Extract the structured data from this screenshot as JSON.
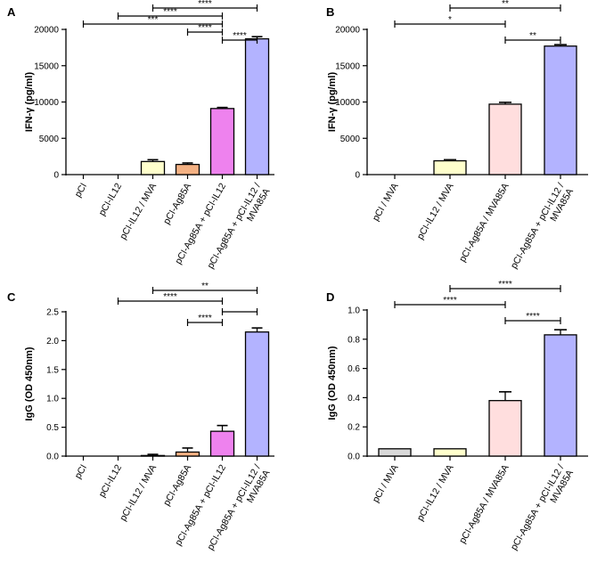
{
  "chart_data": [
    {
      "panel": "A",
      "type": "bar",
      "ylabel": "IFN-γ (pg/ml)",
      "ylim": [
        0,
        20000
      ],
      "yticks": [
        0,
        5000,
        10000,
        15000,
        20000
      ],
      "tick_labels": [
        "0",
        "5000",
        "10000",
        "15000",
        "20000"
      ],
      "categories": [
        [
          "pCI"
        ],
        [
          "pCI-IL12"
        ],
        [
          "pCI-IL12 / MVA"
        ],
        [
          "pCI-Ag85A"
        ],
        [
          "pCI-Ag85A + pCI-IL12"
        ],
        [
          "pCI-Ag85A + pCI-IL12 /",
          "MVA85A"
        ]
      ],
      "values": [
        0,
        0,
        1800,
        1400,
        9100,
        18700
      ],
      "errors": [
        0,
        0,
        250,
        200,
        150,
        300
      ],
      "colors": [
        "#ffffff",
        "#ffffff",
        "#ffffcc",
        "#f4b183",
        "#ee82ee",
        "#b3b3ff"
      ],
      "significance": [
        {
          "from": 2,
          "to": 5,
          "label": "****"
        },
        {
          "from": 1,
          "to": 4,
          "label": "****"
        },
        {
          "from": 0,
          "to": 4,
          "label": "***"
        },
        {
          "from": 3,
          "to": 4,
          "label": "****"
        },
        {
          "from": 4,
          "to": 5,
          "label": "****"
        }
      ]
    },
    {
      "panel": "B",
      "type": "bar",
      "ylabel": "IFN-γ (pg/ml)",
      "ylim": [
        0,
        20000
      ],
      "yticks": [
        0,
        5000,
        10000,
        15000,
        20000
      ],
      "tick_labels": [
        "0",
        "5000",
        "10000",
        "15000",
        "20000"
      ],
      "categories": [
        [
          "pCI / MVA"
        ],
        [
          "pCI-IL12 / MVA"
        ],
        [
          "pCI-Ag85A / MVA85A"
        ],
        [
          "pCI-Ag85A + pCI-IL12 /",
          "MVA85A"
        ]
      ],
      "values": [
        0,
        1900,
        9700,
        17700
      ],
      "errors": [
        0,
        150,
        250,
        200
      ],
      "colors": [
        "#ffffff",
        "#ffffcc",
        "#ffdede",
        "#b3b3ff"
      ],
      "significance": [
        {
          "from": 1,
          "to": 3,
          "label": "**"
        },
        {
          "from": 0,
          "to": 2,
          "label": "*"
        },
        {
          "from": 2,
          "to": 3,
          "label": "**"
        }
      ]
    },
    {
      "panel": "C",
      "type": "bar",
      "ylabel": "IgG (OD 450nm)",
      "ylim": [
        0,
        2.5
      ],
      "yticks": [
        0,
        0.5,
        1.0,
        1.5,
        2.0,
        2.5
      ],
      "tick_labels": [
        "0.0",
        "0.5",
        "1.0",
        "1.5",
        "2.0",
        "2.5"
      ],
      "categories": [
        [
          "pCI"
        ],
        [
          "pCI-IL12"
        ],
        [
          "pCI-IL12 / MVA"
        ],
        [
          "pCI-Ag85A"
        ],
        [
          "pCI-Ag85A + pCI-IL12"
        ],
        [
          "pCI-Ag85A + pCI-IL12 /",
          "MVA85A"
        ]
      ],
      "values": [
        0.0,
        0.0,
        0.01,
        0.07,
        0.43,
        2.15
      ],
      "errors": [
        0,
        0,
        0.02,
        0.07,
        0.1,
        0.07
      ],
      "colors": [
        "#ffffff",
        "#ffffff",
        "#ffffcc",
        "#f4b183",
        "#ee82ee",
        "#b3b3ff"
      ],
      "significance": [
        {
          "from": 2,
          "to": 5,
          "label": "**"
        },
        {
          "from": 1,
          "to": 4,
          "label": "****"
        },
        {
          "from": 4,
          "to": 5,
          "label": ""
        },
        {
          "from": 3,
          "to": 4,
          "label": "****"
        }
      ]
    },
    {
      "panel": "D",
      "type": "bar",
      "ylabel": "IgG (OD 450nm)",
      "ylim": [
        0,
        1.0
      ],
      "yticks": [
        0,
        0.2,
        0.4,
        0.6,
        0.8,
        1.0
      ],
      "tick_labels": [
        "0.0",
        "0.2",
        "0.4",
        "0.6",
        "0.8",
        "1.0"
      ],
      "categories": [
        [
          "pCI / MVA"
        ],
        [
          "pCI-IL12 / MVA"
        ],
        [
          "pCI-Ag85A / MVA85A"
        ],
        [
          "pCI-Ag85A + pCI-IL12 /",
          "MVA85A"
        ]
      ],
      "values": [
        0.05,
        0.05,
        0.38,
        0.83
      ],
      "errors": [
        0,
        0,
        0.06,
        0.035
      ],
      "colors": [
        "#d9d9d9",
        "#ffffcc",
        "#ffdede",
        "#b3b3ff"
      ],
      "significance": [
        {
          "from": 1,
          "to": 3,
          "label": "****"
        },
        {
          "from": 0,
          "to": 2,
          "label": "****"
        },
        {
          "from": 2,
          "to": 3,
          "label": "****"
        }
      ]
    }
  ]
}
